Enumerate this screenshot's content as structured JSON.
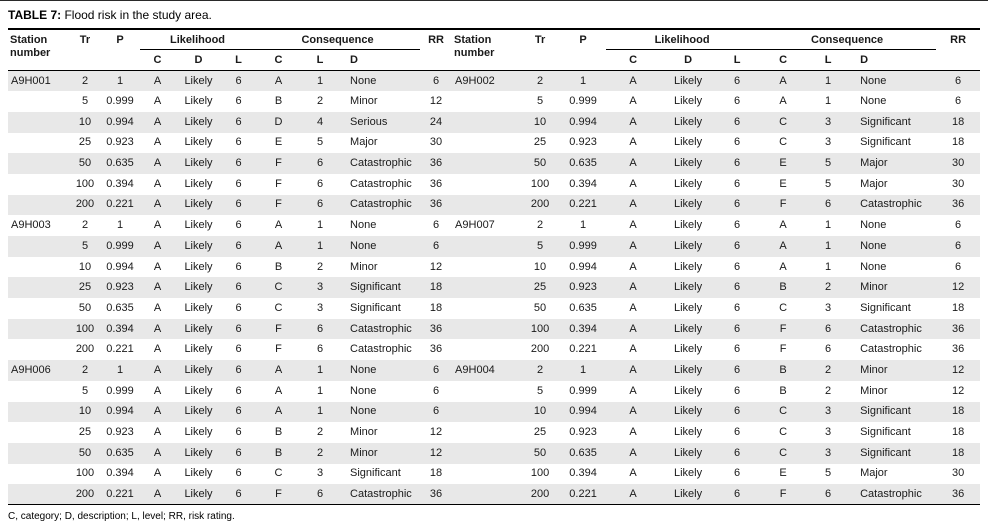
{
  "caption": {
    "label": "TABLE 7:",
    "text": "Flood risk in the study area."
  },
  "columns": {
    "station": "Station number",
    "tr": "Tr",
    "p": "P",
    "likelihood": "Likelihood",
    "likelihood_sub": [
      "C",
      "D",
      "L"
    ],
    "consequence": "Consequence",
    "consequence_sub": [
      "C",
      "L",
      "D"
    ],
    "rr": "RR"
  },
  "row_fields": [
    "station",
    "tr",
    "p",
    "likelihood_c",
    "likelihood_d",
    "likelihood_l",
    "consequence_c",
    "consequence_l",
    "consequence_d",
    "rr"
  ],
  "rows": [
    {
      "left": [
        "A9H001",
        "2",
        "1",
        "A",
        "Likely",
        "6",
        "A",
        "1",
        "None",
        "6"
      ],
      "right": [
        "A9H002",
        "2",
        "1",
        "A",
        "Likely",
        "6",
        "A",
        "1",
        "None",
        "6"
      ]
    },
    {
      "left": [
        "",
        "5",
        "0.999",
        "A",
        "Likely",
        "6",
        "B",
        "2",
        "Minor",
        "12"
      ],
      "right": [
        "",
        "5",
        "0.999",
        "A",
        "Likely",
        "6",
        "A",
        "1",
        "None",
        "6"
      ]
    },
    {
      "left": [
        "",
        "10",
        "0.994",
        "A",
        "Likely",
        "6",
        "D",
        "4",
        "Serious",
        "24"
      ],
      "right": [
        "",
        "10",
        "0.994",
        "A",
        "Likely",
        "6",
        "C",
        "3",
        "Significant",
        "18"
      ]
    },
    {
      "left": [
        "",
        "25",
        "0.923",
        "A",
        "Likely",
        "6",
        "E",
        "5",
        "Major",
        "30"
      ],
      "right": [
        "",
        "25",
        "0.923",
        "A",
        "Likely",
        "6",
        "C",
        "3",
        "Significant",
        "18"
      ]
    },
    {
      "left": [
        "",
        "50",
        "0.635",
        "A",
        "Likely",
        "6",
        "F",
        "6",
        "Catastrophic",
        "36"
      ],
      "right": [
        "",
        "50",
        "0.635",
        "A",
        "Likely",
        "6",
        "E",
        "5",
        "Major",
        "30"
      ]
    },
    {
      "left": [
        "",
        "100",
        "0.394",
        "A",
        "Likely",
        "6",
        "F",
        "6",
        "Catastrophic",
        "36"
      ],
      "right": [
        "",
        "100",
        "0.394",
        "A",
        "Likely",
        "6",
        "E",
        "5",
        "Major",
        "30"
      ]
    },
    {
      "left": [
        "",
        "200",
        "0.221",
        "A",
        "Likely",
        "6",
        "F",
        "6",
        "Catastrophic",
        "36"
      ],
      "right": [
        "",
        "200",
        "0.221",
        "A",
        "Likely",
        "6",
        "F",
        "6",
        "Catastrophic",
        "36"
      ]
    },
    {
      "left": [
        "A9H003",
        "2",
        "1",
        "A",
        "Likely",
        "6",
        "A",
        "1",
        "None",
        "6"
      ],
      "right": [
        "A9H007",
        "2",
        "1",
        "A",
        "Likely",
        "6",
        "A",
        "1",
        "None",
        "6"
      ]
    },
    {
      "left": [
        "",
        "5",
        "0.999",
        "A",
        "Likely",
        "6",
        "A",
        "1",
        "None",
        "6"
      ],
      "right": [
        "",
        "5",
        "0.999",
        "A",
        "Likely",
        "6",
        "A",
        "1",
        "None",
        "6"
      ]
    },
    {
      "left": [
        "",
        "10",
        "0.994",
        "A",
        "Likely",
        "6",
        "B",
        "2",
        "Minor",
        "12"
      ],
      "right": [
        "",
        "10",
        "0.994",
        "A",
        "Likely",
        "6",
        "A",
        "1",
        "None",
        "6"
      ]
    },
    {
      "left": [
        "",
        "25",
        "0.923",
        "A",
        "Likely",
        "6",
        "C",
        "3",
        "Significant",
        "18"
      ],
      "right": [
        "",
        "25",
        "0.923",
        "A",
        "Likely",
        "6",
        "B",
        "2",
        "Minor",
        "12"
      ]
    },
    {
      "left": [
        "",
        "50",
        "0.635",
        "A",
        "Likely",
        "6",
        "C",
        "3",
        "Significant",
        "18"
      ],
      "right": [
        "",
        "50",
        "0.635",
        "A",
        "Likely",
        "6",
        "C",
        "3",
        "Significant",
        "18"
      ]
    },
    {
      "left": [
        "",
        "100",
        "0.394",
        "A",
        "Likely",
        "6",
        "F",
        "6",
        "Catastrophic",
        "36"
      ],
      "right": [
        "",
        "100",
        "0.394",
        "A",
        "Likely",
        "6",
        "F",
        "6",
        "Catastrophic",
        "36"
      ]
    },
    {
      "left": [
        "",
        "200",
        "0.221",
        "A",
        "Likely",
        "6",
        "F",
        "6",
        "Catastrophic",
        "36"
      ],
      "right": [
        "",
        "200",
        "0.221",
        "A",
        "Likely",
        "6",
        "F",
        "6",
        "Catastrophic",
        "36"
      ]
    },
    {
      "left": [
        "A9H006",
        "2",
        "1",
        "A",
        "Likely",
        "6",
        "A",
        "1",
        "None",
        "6"
      ],
      "right": [
        "A9H004",
        "2",
        "1",
        "A",
        "Likely",
        "6",
        "B",
        "2",
        "Minor",
        "12"
      ]
    },
    {
      "left": [
        "",
        "5",
        "0.999",
        "A",
        "Likely",
        "6",
        "A",
        "1",
        "None",
        "6"
      ],
      "right": [
        "",
        "5",
        "0.999",
        "A",
        "Likely",
        "6",
        "B",
        "2",
        "Minor",
        "12"
      ]
    },
    {
      "left": [
        "",
        "10",
        "0.994",
        "A",
        "Likely",
        "6",
        "A",
        "1",
        "None",
        "6"
      ],
      "right": [
        "",
        "10",
        "0.994",
        "A",
        "Likely",
        "6",
        "C",
        "3",
        "Significant",
        "18"
      ]
    },
    {
      "left": [
        "",
        "25",
        "0.923",
        "A",
        "Likely",
        "6",
        "B",
        "2",
        "Minor",
        "12"
      ],
      "right": [
        "",
        "25",
        "0.923",
        "A",
        "Likely",
        "6",
        "C",
        "3",
        "Significant",
        "18"
      ]
    },
    {
      "left": [
        "",
        "50",
        "0.635",
        "A",
        "Likely",
        "6",
        "B",
        "2",
        "Minor",
        "12"
      ],
      "right": [
        "",
        "50",
        "0.635",
        "A",
        "Likely",
        "6",
        "C",
        "3",
        "Significant",
        "18"
      ]
    },
    {
      "left": [
        "",
        "100",
        "0.394",
        "A",
        "Likely",
        "6",
        "C",
        "3",
        "Significant",
        "18"
      ],
      "right": [
        "",
        "100",
        "0.394",
        "A",
        "Likely",
        "6",
        "E",
        "5",
        "Major",
        "30"
      ]
    },
    {
      "left": [
        "",
        "200",
        "0.221",
        "A",
        "Likely",
        "6",
        "F",
        "6",
        "Catastrophic",
        "36"
      ],
      "right": [
        "",
        "200",
        "0.221",
        "A",
        "Likely",
        "6",
        "F",
        "6",
        "Catastrophic",
        "36"
      ]
    }
  ],
  "footnote": "C, category; D, description; L, level; RR, risk rating.",
  "colors": {
    "row_shade": "#e8e8e8",
    "rule": "#000000"
  }
}
